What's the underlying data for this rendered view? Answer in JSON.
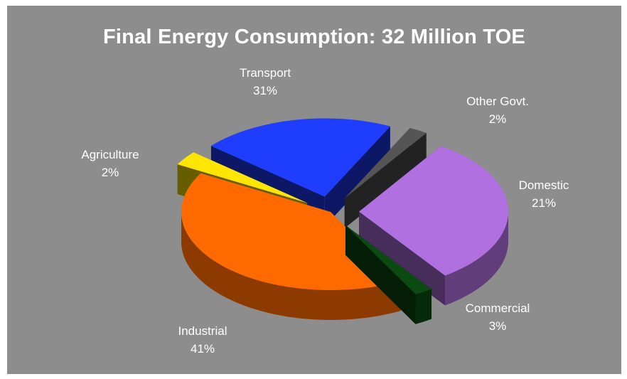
{
  "chart_data": {
    "type": "pie",
    "title": "Final Energy Consumption: 32 Million TOE",
    "slices": [
      {
        "name": "Industrial",
        "value": 41,
        "label": "41%",
        "color": "#ff6a00",
        "exploded": false
      },
      {
        "name": "Commercial",
        "value": 3,
        "label": "3%",
        "color": "#ffe600",
        "exploded": true
      },
      {
        "name": "Domestic",
        "value": 21,
        "label": "21%",
        "color": "#1f3dff",
        "exploded": true
      },
      {
        "name": "Other Govt.",
        "value": 2,
        "label": "2%",
        "color": "#555555",
        "exploded": true
      },
      {
        "name": "Transport",
        "value": 31,
        "label": "31%",
        "color": "#b070e0",
        "exploded": true
      },
      {
        "name": "Agriculture",
        "value": 2,
        "label": "2%",
        "color": "#0b4a10",
        "exploded": true
      }
    ],
    "three_d": true,
    "legend": "none"
  },
  "colors": {
    "background": "#8d8d8d",
    "text": "#ffffff"
  }
}
